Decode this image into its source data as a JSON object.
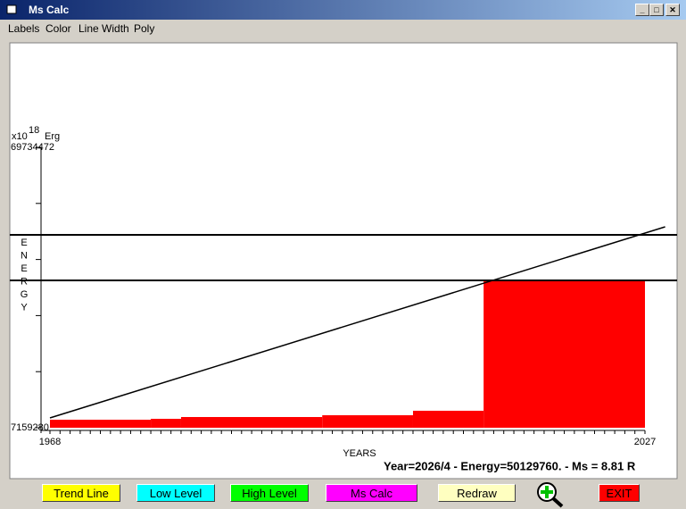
{
  "window": {
    "title": "Ms Calc",
    "menu": [
      "Labels",
      "Color",
      "Line Width",
      "Poly"
    ]
  },
  "chart_data": {
    "type": "area",
    "y_label": "ENERGY",
    "y_unit_prefix": "x10",
    "y_unit_exponent": "18",
    "y_unit": "Erg",
    "x_label": "YEARS",
    "x": [
      1968,
      1978,
      1981,
      1995,
      2004,
      2011
    ],
    "values": [
      8950000,
      9150000,
      9550000,
      9950000,
      10950000,
      40040000
    ],
    "color": "#ff0000",
    "xlim": [
      1968,
      2027
    ],
    "ylim": [
      7159280,
      69734472
    ],
    "xticks": [
      1968,
      2027
    ],
    "yticks": [
      7159280,
      69734472
    ],
    "yminor": [
      19674318,
      32189357,
      44704395,
      57219434
    ],
    "trend_line": {
      "x": [
        1968,
        2029
      ],
      "values": [
        9350000,
        52000000
      ],
      "color": "#000000"
    },
    "low_level": 40040000,
    "high_level": 50200000
  },
  "status": "Year=2026/4 - Energy=50129760. - Ms = 8.81 R",
  "buttons": [
    {
      "label": "Trend Line",
      "color": "#ffff00"
    },
    {
      "label": "Low Level",
      "color": "#00ffff"
    },
    {
      "label": "High Level",
      "color": "#00ff00"
    },
    {
      "label": "Ms Calc",
      "color": "#ff00ff"
    },
    {
      "label": "Redraw",
      "color": "#ffffc0"
    },
    {
      "label": "EXIT",
      "color": "#ff0000"
    }
  ]
}
